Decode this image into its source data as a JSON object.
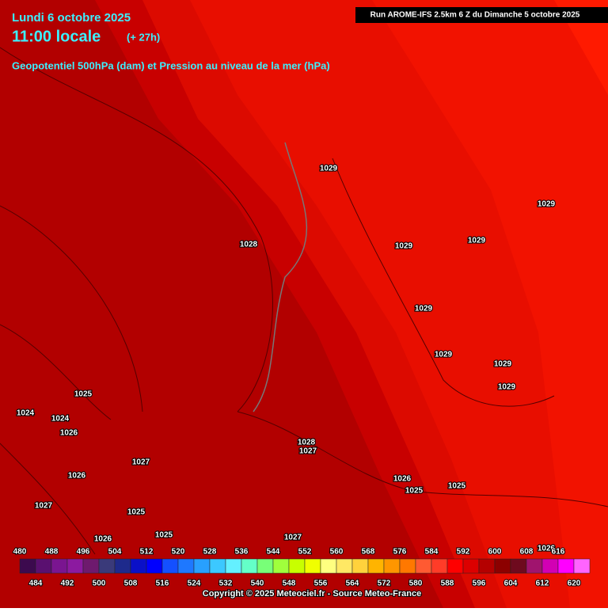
{
  "header": {
    "date": "Lundi 6 octobre 2025",
    "time": "11:00 locale",
    "lead": "(+ 27h)",
    "subtitle": "Geopotentiel 500hPa (dam) et Pression au niveau de la mer (hPa)",
    "run": "Run AROME-IFS 2.5km 6 Z du Dimanche 5 octobre 2025"
  },
  "pressure_labels": [
    "1029",
    "1029",
    "1029",
    "1029",
    "1028",
    "1029",
    "1029",
    "1029",
    "1029",
    "1025",
    "1024",
    "1024",
    "1026",
    "1028",
    "1027",
    "1027",
    "1026",
    "1026",
    "1025",
    "1025",
    "1027",
    "1025",
    "1025",
    "1026",
    "1027",
    "1026"
  ],
  "colorbar": {
    "top_labels": [
      480,
      488,
      496,
      504,
      512,
      520,
      528,
      536,
      544,
      552,
      560,
      568,
      576,
      584,
      592,
      600,
      608,
      616
    ],
    "bottom_labels": [
      484,
      492,
      500,
      508,
      516,
      524,
      532,
      540,
      548,
      556,
      564,
      572,
      580,
      588,
      596,
      604,
      612,
      620
    ],
    "colors": [
      "#3c0a4e",
      "#5a1070",
      "#7a1590",
      "#8c1aa0",
      "#6e1a6e",
      "#3a3a7a",
      "#1e2a8c",
      "#0a10c8",
      "#0000ff",
      "#1450ff",
      "#1e78ff",
      "#28a0ff",
      "#3cc8ff",
      "#64f0ff",
      "#64ffc8",
      "#78ff78",
      "#a0ff3c",
      "#c8ff00",
      "#f0ff00",
      "#ffff80",
      "#ffe864",
      "#ffd23c",
      "#ffb400",
      "#ff9600",
      "#ff7800",
      "#ff5a32",
      "#ff3c28",
      "#ff0000",
      "#dc0000",
      "#b40000",
      "#8c0000",
      "#6e0a1e",
      "#a0146e",
      "#d200b4",
      "#ff00ff",
      "#ff64ff"
    ]
  },
  "footer": {
    "copyright": "Copyright © 2025 Meteociel.fr - Source Meteo-France"
  }
}
